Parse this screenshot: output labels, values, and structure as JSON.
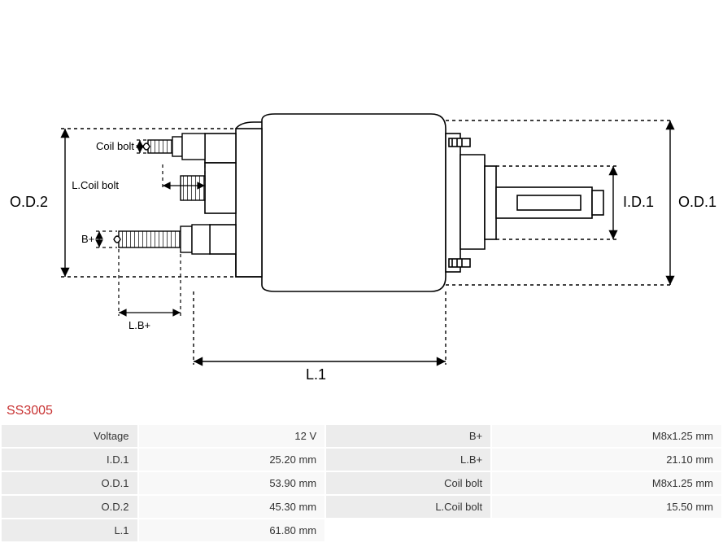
{
  "part_code": "SS3005",
  "diagram": {
    "type": "engineering-drawing",
    "stroke_color": "#000000",
    "stroke_width": 1.6,
    "dash_pattern": "4 4",
    "background": "#ffffff",
    "labels": {
      "od2": "O.D.2",
      "od1": "O.D.1",
      "id1": "I.D.1",
      "l1": "L.1",
      "lb_plus": "L.B+",
      "b_plus": "B+",
      "coil_bolt": "Coil bolt",
      "l_coil_bolt": "L.Coil bolt"
    }
  },
  "specs": {
    "rows": [
      {
        "label1": "Voltage",
        "value1": "12 V",
        "label2": "B+",
        "value2": "M8x1.25 mm"
      },
      {
        "label1": "I.D.1",
        "value1": "25.20 mm",
        "label2": "L.B+",
        "value2": "21.10 mm"
      },
      {
        "label1": "O.D.1",
        "value1": "53.90 mm",
        "label2": "Coil bolt",
        "value2": "M8x1.25 mm"
      },
      {
        "label1": "O.D.2",
        "value1": "45.30 mm",
        "label2": "L.Coil bolt",
        "value2": "15.50 mm"
      },
      {
        "label1": "L.1",
        "value1": "61.80 mm",
        "label2": "",
        "value2": ""
      }
    ]
  }
}
